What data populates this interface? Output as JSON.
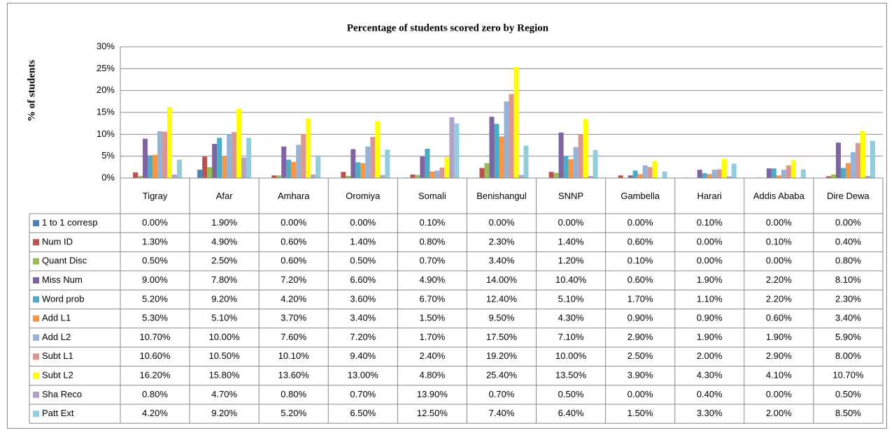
{
  "chart_data": {
    "type": "bar",
    "title": "Percentage of students scored zero by Region",
    "y_label": "% of students",
    "categories": [
      "Tigray",
      "Afar",
      "Amhara",
      "Oromiya",
      "Somali",
      "Benishangul",
      "SNNP",
      "Gambella",
      "Harari",
      "Addis Ababa",
      "Dire Dewa"
    ],
    "ylim": [
      0,
      30
    ],
    "yticks": [
      {
        "value": 0,
        "label": "0%"
      },
      {
        "value": 5,
        "label": "5%"
      },
      {
        "value": 10,
        "label": "10%"
      },
      {
        "value": 15,
        "label": "15%"
      },
      {
        "value": 20,
        "label": "20%"
      },
      {
        "value": 25,
        "label": "25%"
      },
      {
        "value": 30,
        "label": "30%"
      }
    ],
    "grid": true,
    "series": [
      {
        "name": "1 to 1 corresp",
        "color": "#4f81bd",
        "values": [
          0,
          1.9,
          0,
          0,
          0.1,
          0,
          0,
          0,
          0.1,
          0,
          0
        ],
        "value_labels": [
          "0.00%",
          "1.90%",
          "0.00%",
          "0.00%",
          "0.10%",
          "0.00%",
          "0.00%",
          "0.00%",
          "0.10%",
          "0.00%",
          "0.00%"
        ]
      },
      {
        "name": "Num ID",
        "color": "#c0504d",
        "values": [
          1.3,
          4.9,
          0.6,
          1.4,
          0.8,
          2.3,
          1.4,
          0.6,
          0,
          0.1,
          0.4
        ],
        "value_labels": [
          "1.30%",
          "4.90%",
          "0.60%",
          "1.40%",
          "0.80%",
          "2.30%",
          "1.40%",
          "0.60%",
          "0.00%",
          "0.10%",
          "0.40%"
        ]
      },
      {
        "name": "Quant Disc",
        "color": "#9bbb59",
        "values": [
          0.5,
          2.5,
          0.6,
          0.5,
          0.7,
          3.4,
          1.2,
          0.1,
          0,
          0,
          0.8
        ],
        "value_labels": [
          "0.50%",
          "2.50%",
          "0.60%",
          "0.50%",
          "0.70%",
          "3.40%",
          "1.20%",
          "0.10%",
          "0.00%",
          "0.00%",
          "0.80%"
        ]
      },
      {
        "name": "Miss Num",
        "color": "#8064a2",
        "values": [
          9,
          7.8,
          7.2,
          6.6,
          4.9,
          14,
          10.4,
          0.6,
          1.9,
          2.2,
          8.1
        ],
        "value_labels": [
          "9.00%",
          "7.80%",
          "7.20%",
          "6.60%",
          "4.90%",
          "14.00%",
          "10.40%",
          "0.60%",
          "1.90%",
          "2.20%",
          "8.10%"
        ]
      },
      {
        "name": "Word prob",
        "color": "#4bacc6",
        "values": [
          5.2,
          9.2,
          4.2,
          3.6,
          6.7,
          12.4,
          5.1,
          1.7,
          1.1,
          2.2,
          2.3
        ],
        "value_labels": [
          "5.20%",
          "9.20%",
          "4.20%",
          "3.60%",
          "6.70%",
          "12.40%",
          "5.10%",
          "1.70%",
          "1.10%",
          "2.20%",
          "2.30%"
        ]
      },
      {
        "name": "Add L1",
        "color": "#f79646",
        "values": [
          5.3,
          5.1,
          3.7,
          3.4,
          1.5,
          9.5,
          4.3,
          0.9,
          0.9,
          0.6,
          3.4
        ],
        "value_labels": [
          "5.30%",
          "5.10%",
          "3.70%",
          "3.40%",
          "1.50%",
          "9.50%",
          "4.30%",
          "0.90%",
          "0.90%",
          "0.60%",
          "3.40%"
        ]
      },
      {
        "name": "Add L2",
        "color": "#95b3d7",
        "values": [
          10.7,
          10,
          7.6,
          7.2,
          1.7,
          17.5,
          7.1,
          2.9,
          1.9,
          1.9,
          5.9
        ],
        "value_labels": [
          "10.70%",
          "10.00%",
          "7.60%",
          "7.20%",
          "1.70%",
          "17.50%",
          "7.10%",
          "2.90%",
          "1.90%",
          "1.90%",
          "5.90%"
        ]
      },
      {
        "name": "Subt L1",
        "color": "#d99694",
        "values": [
          10.6,
          10.5,
          10.1,
          9.4,
          2.4,
          19.2,
          10,
          2.5,
          2,
          2.9,
          8
        ],
        "value_labels": [
          "10.60%",
          "10.50%",
          "10.10%",
          "9.40%",
          "2.40%",
          "19.20%",
          "10.00%",
          "2.50%",
          "2.00%",
          "2.90%",
          "8.00%"
        ]
      },
      {
        "name": "Subt L2",
        "color": "#ffff00",
        "values": [
          16.2,
          15.8,
          13.6,
          13,
          4.8,
          25.4,
          13.5,
          3.9,
          4.3,
          4.1,
          10.7
        ],
        "value_labels": [
          "16.20%",
          "15.80%",
          "13.60%",
          "13.00%",
          "4.80%",
          "25.40%",
          "13.50%",
          "3.90%",
          "4.30%",
          "4.10%",
          "10.70%"
        ]
      },
      {
        "name": "Sha Reco",
        "color": "#b3a2c7",
        "values": [
          0.8,
          4.7,
          0.8,
          0.7,
          13.9,
          0.7,
          0.5,
          0,
          0.4,
          0,
          0.5
        ],
        "value_labels": [
          "0.80%",
          "4.70%",
          "0.80%",
          "0.70%",
          "13.90%",
          "0.70%",
          "0.50%",
          "0.00%",
          "0.40%",
          "0.00%",
          "0.50%"
        ]
      },
      {
        "name": "Patt Ext",
        "color": "#93cddd",
        "values": [
          4.2,
          9.2,
          5.2,
          6.5,
          12.5,
          7.4,
          6.4,
          1.5,
          3.3,
          2,
          8.5
        ],
        "value_labels": [
          "4.20%",
          "9.20%",
          "5.20%",
          "6.50%",
          "12.50%",
          "7.40%",
          "6.40%",
          "1.50%",
          "3.30%",
          "2.00%",
          "8.50%"
        ]
      }
    ]
  }
}
